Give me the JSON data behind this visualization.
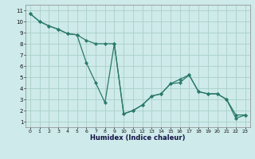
{
  "xlabel": "Humidex (Indice chaleur)",
  "background_color": "#ceeaea",
  "grid_color": "#aad0c8",
  "line_color": "#2a7a6a",
  "xlim": [
    -0.5,
    23.5
  ],
  "ylim": [
    0.5,
    11.5
  ],
  "xticks": [
    0,
    1,
    2,
    3,
    4,
    5,
    6,
    7,
    8,
    9,
    10,
    11,
    12,
    13,
    14,
    15,
    16,
    17,
    18,
    19,
    20,
    21,
    22,
    23
  ],
  "yticks": [
    1,
    2,
    3,
    4,
    5,
    6,
    7,
    8,
    9,
    10,
    11
  ],
  "line1_x": [
    0,
    1,
    2,
    3,
    4,
    5,
    6,
    7,
    8,
    9,
    10,
    11,
    12,
    13,
    14,
    15,
    16,
    17,
    18,
    19,
    20,
    21,
    22,
    23
  ],
  "line1_y": [
    10.7,
    10.0,
    9.6,
    9.3,
    8.9,
    8.8,
    6.3,
    4.5,
    2.7,
    8.0,
    1.7,
    2.0,
    2.5,
    3.3,
    3.5,
    4.4,
    4.5,
    5.2,
    3.7,
    3.5,
    3.5,
    3.0,
    1.3,
    1.6
  ],
  "line2_x": [
    0,
    1,
    2,
    3,
    4,
    5,
    6,
    7,
    8,
    9,
    10,
    11,
    12,
    13,
    14,
    15,
    16,
    17,
    18,
    19,
    20,
    21,
    22,
    23
  ],
  "line2_y": [
    10.7,
    10.0,
    9.6,
    9.3,
    8.9,
    8.8,
    8.3,
    8.0,
    8.0,
    8.0,
    1.7,
    2.0,
    2.5,
    3.3,
    3.5,
    4.4,
    4.8,
    5.2,
    3.7,
    3.5,
    3.5,
    3.0,
    1.6,
    1.6
  ]
}
